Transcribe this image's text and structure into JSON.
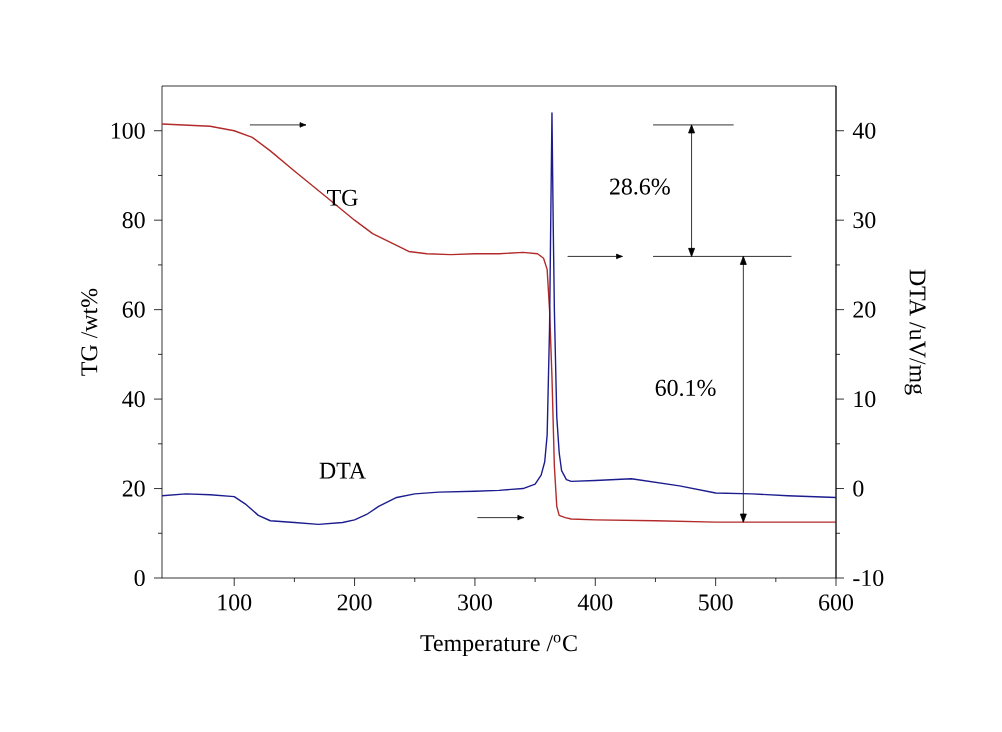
{
  "chart_data": {
    "type": "line",
    "xlabel": "Temperature /$^{o}$C",
    "ylabel": "TG /wt%",
    "y2label": "DTA /uV/mg",
    "xlim": [
      40,
      600
    ],
    "xticks": [
      100,
      200,
      300,
      400,
      500,
      600
    ],
    "ylim": [
      0,
      110
    ],
    "yticks": [
      0,
      20,
      40,
      60,
      80,
      100
    ],
    "y2lim": [
      -10,
      45
    ],
    "y2ticks": [
      -10,
      0,
      10,
      20,
      30,
      40
    ],
    "annotations": [
      "28.6%",
      "60.1%"
    ],
    "ref_lines": [
      {
        "axis": "y",
        "value": 101.3
      },
      {
        "axis": "y",
        "value": 71.9
      }
    ],
    "grid": false,
    "marker": "none",
    "line_style": "solid",
    "series": [
      {
        "name": "TG",
        "color": "#b22a2a",
        "x": [
          40,
          80,
          100,
          115,
          130,
          150,
          175,
          200,
          215,
          230,
          245,
          260,
          280,
          300,
          320,
          340,
          352,
          357,
          360,
          362,
          364,
          366,
          368,
          370,
          375,
          380,
          400,
          450,
          500,
          550,
          600
        ],
        "values": [
          101.5,
          101,
          100,
          98.5,
          95.5,
          91,
          85.5,
          80,
          77,
          75,
          73,
          72.5,
          72.3,
          72.5,
          72.5,
          72.8,
          72.5,
          71.5,
          69,
          60,
          45,
          25,
          16,
          14,
          13.5,
          13.2,
          13,
          12.8,
          12.5,
          12.5,
          12.5
        ]
      },
      {
        "name": "DTA",
        "color": "#1c1c8f",
        "axis": "y2",
        "x": [
          40,
          60,
          80,
          100,
          110,
          120,
          130,
          150,
          170,
          190,
          200,
          210,
          220,
          235,
          250,
          270,
          300,
          320,
          340,
          350,
          355,
          358,
          360,
          362,
          363,
          364,
          365,
          366,
          368,
          370,
          372,
          376,
          380,
          400,
          430,
          450,
          470,
          500,
          530,
          560,
          600
        ],
        "values": [
          -0.8,
          -0.6,
          -0.7,
          -0.9,
          -1.8,
          -3.0,
          -3.6,
          -3.8,
          -4.0,
          -3.8,
          -3.5,
          -2.9,
          -2.0,
          -1.0,
          -0.6,
          -0.4,
          -0.3,
          -0.2,
          0,
          0.5,
          1.5,
          3,
          6,
          18,
          30,
          42,
          30,
          20,
          8,
          4,
          2,
          1,
          0.8,
          0.9,
          1.1,
          0.7,
          0.3,
          -0.5,
          -0.6,
          -0.8,
          -1.0
        ]
      }
    ]
  }
}
